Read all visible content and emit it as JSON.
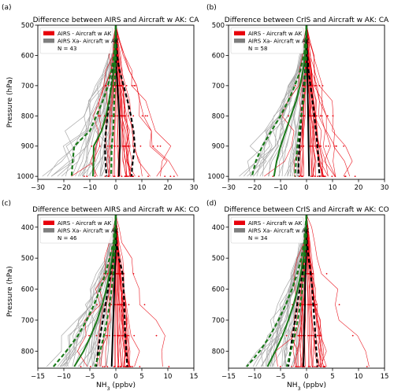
{
  "chart_data": [
    {
      "type": "line",
      "panel_letter": "(a)",
      "title": "Difference between AIRS and Aircraft w AK: CA",
      "xlabel": "",
      "ylabel": "Pressure (hPa)",
      "xlim": [
        -30,
        30
      ],
      "ylim": [
        1010,
        500
      ],
      "x_ticks": [
        "−30",
        "−20",
        "−10",
        "0",
        "10",
        "20",
        "30"
      ],
      "y_ticks": [
        "500",
        "600",
        "700",
        "800",
        "900",
        "1000"
      ],
      "legend": [
        {
          "label": "AIRS - Aircraft w AK",
          "color": "#e8000b"
        },
        {
          "label": "AIRS Xa- Aircraft w AK",
          "color": "#7f7f7f"
        },
        {
          "label": "N = 43",
          "color": ""
        }
      ],
      "pressure": [
        500,
        550,
        600,
        650,
        700,
        750,
        800,
        850,
        900,
        950,
        1000
      ],
      "series": [
        {
          "role": "mean",
          "color": "#000000",
          "dash": "",
          "values": [
            0,
            0,
            0,
            0.2,
            0.6,
            1.0,
            1.3,
            1.5,
            1.6,
            1.3,
            1.2
          ]
        },
        {
          "role": "mean_plus_sd",
          "color": "#000000",
          "dash": "5,3",
          "values": [
            0,
            0.2,
            0.5,
            1.4,
            3.0,
            4.5,
            5.8,
            6.8,
            7.3,
            6.5,
            6.0
          ]
        },
        {
          "role": "mean_minus_sd",
          "color": "#000000",
          "dash": "5,3",
          "values": [
            0,
            -0.2,
            -0.5,
            -1.0,
            -1.8,
            -2.5,
            -3.2,
            -3.8,
            -4.2,
            -4.0,
            -3.6
          ]
        },
        {
          "role": "xa_mean",
          "color": "#1a7a1a",
          "dash": "",
          "values": [
            0,
            -0.1,
            -0.3,
            -0.8,
            -1.6,
            -2.6,
            -3.8,
            -5.5,
            -8.5,
            -8.6,
            -8.8
          ]
        },
        {
          "role": "xa_mean_plus_sd",
          "color": "#1a7a1a",
          "dash": "5,3",
          "values": [
            0,
            0,
            0,
            -0.2,
            -0.4,
            -0.6,
            -0.8,
            -1.0,
            -1.6,
            -1.7,
            -1.8
          ]
        },
        {
          "role": "xa_mean_minus_sd",
          "color": "#1a7a1a",
          "dash": "5,3",
          "values": [
            0,
            -0.3,
            -0.7,
            -1.7,
            -3.0,
            -5.0,
            -7.5,
            -10.0,
            -16.0,
            -16.6,
            -17.0
          ]
        }
      ]
    },
    {
      "type": "line",
      "panel_letter": "(b)",
      "title": "Difference between CrIS and Aircraft w AK: CA",
      "xlabel": "",
      "ylabel": "",
      "xlim": [
        -30,
        30
      ],
      "ylim": [
        1010,
        500
      ],
      "x_ticks": [
        "−30",
        "−20",
        "−10",
        "0",
        "10",
        "20",
        "30"
      ],
      "y_ticks": [
        "500",
        "600",
        "700",
        "800",
        "900",
        "1000"
      ],
      "legend": [
        {
          "label": "AIRS - Aircraft w AK",
          "color": "#e8000b"
        },
        {
          "label": "AIRS Xa- Aircraft w AK",
          "color": "#7f7f7f"
        },
        {
          "label": "N = 58",
          "color": ""
        }
      ],
      "pressure": [
        500,
        550,
        600,
        650,
        700,
        750,
        800,
        850,
        900,
        950,
        1000
      ],
      "series": [
        {
          "role": "mean",
          "color": "#000000",
          "dash": "",
          "values": [
            0,
            0,
            0.1,
            0.2,
            0.4,
            0.5,
            0.6,
            0.7,
            0.8,
            0.9,
            1.0
          ]
        },
        {
          "role": "mean_plus_sd",
          "color": "#000000",
          "dash": "5,3",
          "values": [
            0,
            0.1,
            0.3,
            0.8,
            1.5,
            2.3,
            3.0,
            3.6,
            4.2,
            4.6,
            5.0
          ]
        },
        {
          "role": "mean_minus_sd",
          "color": "#000000",
          "dash": "5,3",
          "values": [
            0,
            -0.1,
            -0.2,
            -0.5,
            -1.0,
            -1.5,
            -2.0,
            -2.4,
            -2.8,
            -3.0,
            -3.2
          ]
        },
        {
          "role": "xa_mean",
          "color": "#1a7a1a",
          "dash": "",
          "values": [
            0,
            -0.2,
            -0.6,
            -1.3,
            -2.5,
            -4.0,
            -6.0,
            -8.0,
            -10.0,
            -11.5,
            -12.5
          ]
        },
        {
          "role": "xa_mean_plus_sd",
          "color": "#1a7a1a",
          "dash": "5,3",
          "values": [
            0,
            0,
            -0.1,
            -0.3,
            -0.7,
            -1.2,
            -2.0,
            -2.8,
            -3.5,
            -4.0,
            -4.5
          ]
        },
        {
          "role": "xa_mean_minus_sd",
          "color": "#1a7a1a",
          "dash": "5,3",
          "values": [
            0,
            -0.4,
            -1.1,
            -2.4,
            -4.5,
            -7.0,
            -10.0,
            -13.5,
            -17.0,
            -19.5,
            -21.0
          ]
        }
      ]
    },
    {
      "type": "line",
      "panel_letter": "(c)",
      "title": "Difference between AIRS and Aircraft w AK: CO",
      "xlabel": "NH3 (ppbv)",
      "ylabel": "Pressure (hPa)",
      "xlim": [
        -15,
        15
      ],
      "ylim": [
        855,
        360
      ],
      "x_ticks": [
        "−15",
        "−10",
        "−5",
        "0",
        "5",
        "10",
        "15"
      ],
      "y_ticks": [
        "400",
        "500",
        "600",
        "700",
        "800"
      ],
      "legend": [
        {
          "label": "AIRS - Aircraft w AK",
          "color": "#e8000b"
        },
        {
          "label": "AIRS Xa- Aircraft w AK",
          "color": "#7f7f7f"
        },
        {
          "label": "N = 46",
          "color": ""
        }
      ],
      "pressure": [
        360,
        400,
        450,
        500,
        550,
        600,
        650,
        700,
        750,
        800,
        850
      ],
      "series": [
        {
          "role": "mean",
          "color": "#000000",
          "dash": "",
          "values": [
            0,
            0,
            0,
            -0.1,
            -0.2,
            -0.3,
            -0.4,
            -0.5,
            -0.6,
            -0.7,
            -0.8
          ]
        },
        {
          "role": "mean_plus_sd",
          "color": "#000000",
          "dash": "5,3",
          "values": [
            0,
            0,
            0.1,
            0.6,
            1.3,
            1.5,
            1.6,
            1.7,
            1.8,
            2.0,
            2.2
          ]
        },
        {
          "role": "mean_minus_sd",
          "color": "#000000",
          "dash": "5,3",
          "values": [
            0,
            0,
            -0.1,
            -0.5,
            -1.0,
            -1.5,
            -2.0,
            -2.5,
            -3.0,
            -3.4,
            -3.8
          ]
        },
        {
          "role": "xa_mean",
          "color": "#1a7a1a",
          "dash": "",
          "values": [
            0,
            -0.1,
            -0.3,
            -0.7,
            -1.2,
            -1.8,
            -2.6,
            -3.6,
            -4.8,
            -6.2,
            -8.0
          ]
        },
        {
          "role": "xa_mean_plus_sd",
          "color": "#1a7a1a",
          "dash": "5,3",
          "values": [
            0,
            0,
            -0.1,
            -0.3,
            -0.5,
            -0.8,
            -1.2,
            -1.7,
            -2.3,
            -3.0,
            -4.0
          ]
        },
        {
          "role": "xa_mean_minus_sd",
          "color": "#1a7a1a",
          "dash": "5,3",
          "values": [
            0,
            -0.2,
            -0.5,
            -1.2,
            -2.0,
            -3.0,
            -4.2,
            -5.6,
            -7.3,
            -9.5,
            -12.0
          ]
        }
      ]
    },
    {
      "type": "line",
      "panel_letter": "(d)",
      "title": "Difference between CrIS and Aircraft w AK: CO",
      "xlabel": "NH3 (ppbv)",
      "ylabel": "",
      "xlim": [
        -15,
        15
      ],
      "ylim": [
        855,
        360
      ],
      "x_ticks": [
        "−15",
        "−10",
        "−5",
        "0",
        "5",
        "10",
        "15"
      ],
      "y_ticks": [
        "400",
        "500",
        "600",
        "700",
        "800"
      ],
      "legend": [
        {
          "label": "AIRS - Aircraft w AK",
          "color": "#e8000b"
        },
        {
          "label": "AIRS Xa- Aircraft w AK",
          "color": "#7f7f7f"
        },
        {
          "label": "N = 34",
          "color": ""
        }
      ],
      "pressure": [
        360,
        400,
        450,
        500,
        550,
        600,
        650,
        700,
        750,
        800,
        850
      ],
      "series": [
        {
          "role": "mean",
          "color": "#000000",
          "dash": "",
          "values": [
            0,
            0,
            0,
            -0.1,
            -0.2,
            -0.3,
            -0.3,
            -0.4,
            -0.5,
            -0.5,
            -0.6
          ]
        },
        {
          "role": "mean_plus_sd",
          "color": "#000000",
          "dash": "5,3",
          "values": [
            0,
            0,
            0.1,
            0.4,
            0.8,
            1.1,
            1.3,
            1.5,
            1.7,
            1.9,
            2.1
          ]
        },
        {
          "role": "mean_minus_sd",
          "color": "#000000",
          "dash": "5,3",
          "values": [
            0,
            0,
            -0.1,
            -0.4,
            -0.8,
            -1.3,
            -1.8,
            -2.2,
            -2.7,
            -3.1,
            -3.5
          ]
        },
        {
          "role": "xa_mean",
          "color": "#1a7a1a",
          "dash": "",
          "values": [
            0,
            -0.1,
            -0.3,
            -0.6,
            -1.1,
            -1.7,
            -2.5,
            -3.5,
            -4.6,
            -6.0,
            -7.5
          ]
        },
        {
          "role": "xa_mean_plus_sd",
          "color": "#1a7a1a",
          "dash": "5,3",
          "values": [
            0,
            0,
            -0.1,
            -0.3,
            -0.5,
            -0.8,
            -1.2,
            -1.7,
            -2.3,
            -3.0,
            -3.8
          ]
        },
        {
          "role": "xa_mean_minus_sd",
          "color": "#1a7a1a",
          "dash": "5,3",
          "values": [
            0,
            -0.2,
            -0.5,
            -1.0,
            -1.8,
            -2.8,
            -4.0,
            -5.4,
            -7.0,
            -9.0,
            -11.5
          ]
        }
      ]
    }
  ]
}
